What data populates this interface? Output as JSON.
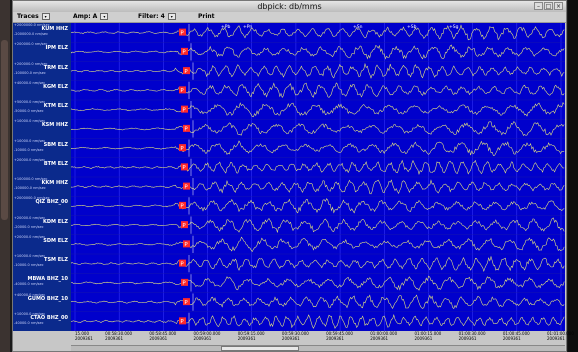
{
  "window": {
    "title": "dbpick: db/mms"
  },
  "menu": {
    "traces": "Traces",
    "amp": "Amp: A",
    "filter": "Filter: 4",
    "print": "Print"
  },
  "traces": [
    {
      "name": "KUM HHZ",
      "top": "+2000000.0 nm/sec",
      "bottom": "-2000000.0 nm/sec"
    },
    {
      "name": "IPM ELZ",
      "top": "+200000.0 nm/sec",
      "bottom": ""
    },
    {
      "name": "TRM ELZ",
      "top": "+200000.0 nm/sec",
      "bottom": "-100000.0 nm/sec"
    },
    {
      "name": "KGM ELZ",
      "top": "+40000.0 nm/sec",
      "bottom": ""
    },
    {
      "name": "KTM ELZ",
      "top": "+50000.0 nm/sec",
      "bottom": "-50000.0 nm/sec"
    },
    {
      "name": "KSM HHZ",
      "top": "+10000.0 nm/sec",
      "bottom": ""
    },
    {
      "name": "SBM ELZ",
      "top": "+10000.0 nm/sec",
      "bottom": "-10000.0 nm/sec"
    },
    {
      "name": "BTM ELZ",
      "top": "+20000.0 nm/sec",
      "bottom": ""
    },
    {
      "name": "KKM HHZ",
      "top": "+100000.0 nm/sec",
      "bottom": "-100000.0 nm/sec"
    },
    {
      "name": "QIZ BHZ_00",
      "top": "+2000000.0 nm/sec",
      "bottom": ""
    },
    {
      "name": "KDM ELZ",
      "top": "+20000.0 nm/sec",
      "bottom": "-20000.0 nm/sec"
    },
    {
      "name": "SDM ELZ",
      "top": "+20000.0 nm/sec",
      "bottom": ""
    },
    {
      "name": "TSM ELZ",
      "top": "+10000.0 nm/sec",
      "bottom": "-10000.0 nm/sec"
    },
    {
      "name": "MBWA BHZ_10",
      "top": "",
      "bottom": "-40000.0 nm/sec"
    },
    {
      "name": "GUMO BHZ_10",
      "top": "+40000.0 nm/sec",
      "bottom": ""
    },
    {
      "name": "CTAO BHZ_00",
      "top": "+10000.0 nm/sec",
      "bottom": "-40000.0 nm/sec"
    }
  ],
  "time_axis": [
    {
      "time": "15.000",
      "date": "2009361"
    },
    {
      "time": "00:58:30.000",
      "date": "2009361"
    },
    {
      "time": "00:58:45.000",
      "date": "2009361"
    },
    {
      "time": "00:59:00.000",
      "date": "2009361"
    },
    {
      "time": "00:59:15.000",
      "date": "2009361"
    },
    {
      "time": "00:59:30.000",
      "date": "2009361"
    },
    {
      "time": "00:59:45.000",
      "date": "2009361"
    },
    {
      "time": "01:00:00.000",
      "date": "2009361"
    },
    {
      "time": "01:00:15.000",
      "date": "2009361"
    },
    {
      "time": "01:00:30.000",
      "date": "2009361"
    },
    {
      "time": "01:00:45.000",
      "date": "2009361"
    },
    {
      "time": "01:01:00.000",
      "date": "2009361"
    }
  ],
  "phase_marker_label": "P",
  "top_phase_labels": [
    "+Pb",
    "+Pn",
    "+Sn",
    "+Sb",
    "+Sg"
  ],
  "colors": {
    "trace_bg": "#0000cc",
    "label_bg": "#0b2a8c",
    "waveform": "#f2f27a",
    "pick": "#ff2a2a",
    "window": "#c7c7c7"
  }
}
